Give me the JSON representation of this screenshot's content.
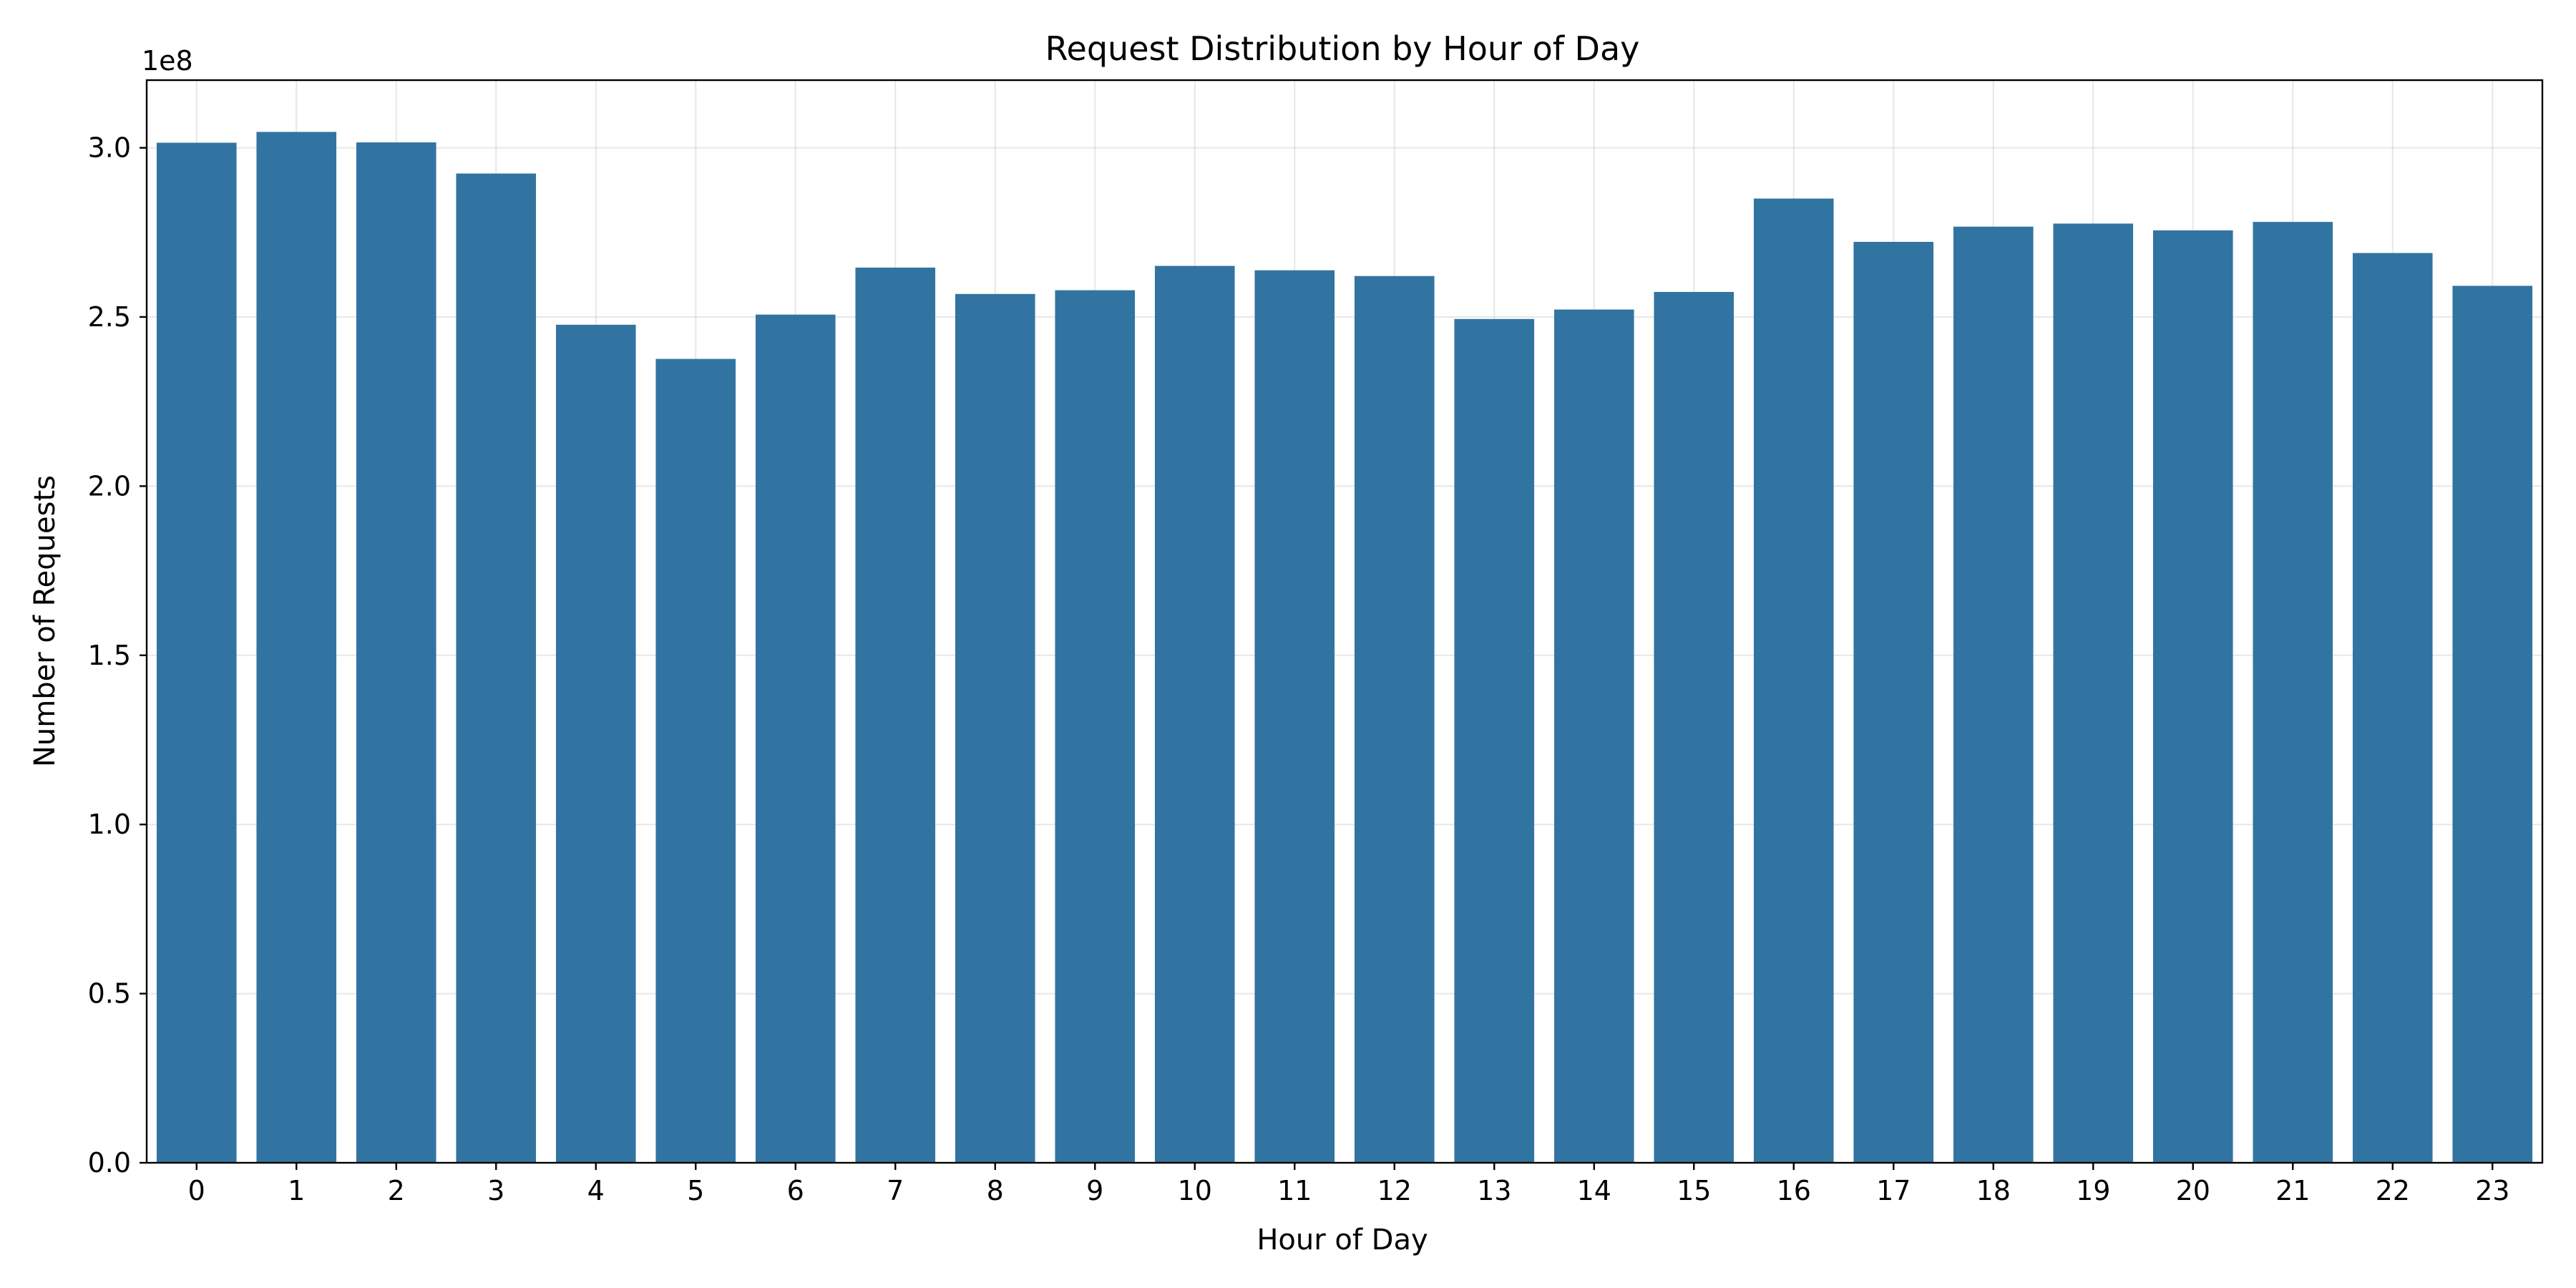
{
  "chart_data": {
    "type": "bar",
    "title": "Request Distribution by Hour of Day",
    "xlabel": "Hour of Day",
    "ylabel": "Number of Requests",
    "y_offset_label": "1e8",
    "categories": [
      "0",
      "1",
      "2",
      "3",
      "4",
      "5",
      "6",
      "7",
      "8",
      "9",
      "10",
      "11",
      "12",
      "13",
      "14",
      "15",
      "16",
      "17",
      "18",
      "19",
      "20",
      "21",
      "22",
      "23"
    ],
    "values": [
      301500000,
      304700000,
      301600000,
      292400000,
      247700000,
      237600000,
      250700000,
      264600000,
      256800000,
      257900000,
      265100000,
      263800000,
      262100000,
      249400000,
      252200000,
      257400000,
      285000000,
      272200000,
      276700000,
      277600000,
      275600000,
      278100000,
      268900000,
      259200000
    ],
    "ylim": [
      0,
      320000000
    ],
    "yticks": [
      0,
      50000000,
      100000000,
      150000000,
      200000000,
      250000000,
      300000000
    ],
    "ytick_labels": [
      "0.0",
      "0.5",
      "1.0",
      "1.5",
      "2.0",
      "2.5",
      "3.0"
    ],
    "bar_color": "#3274a1",
    "grid": true,
    "legend": "none"
  }
}
